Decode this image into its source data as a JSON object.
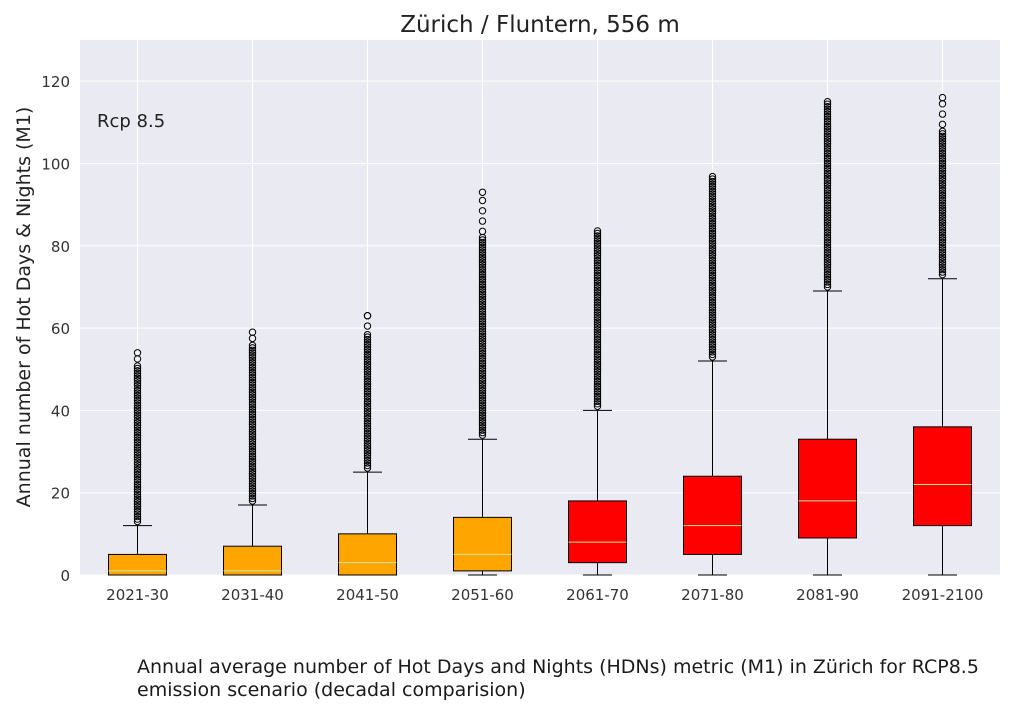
{
  "chart_data": {
    "type": "box",
    "title": "Zürich / Fluntern, 556 m",
    "annotation": "Rcp 8.5",
    "xlabel": "",
    "ylabel": "Annual number of Hot Days & Nights (M1)",
    "ylim": [
      0,
      130
    ],
    "yticks": [
      0,
      20,
      40,
      60,
      80,
      100,
      120
    ],
    "grid": true,
    "categories": [
      "2021-30",
      "2031-40",
      "2041-50",
      "2051-60",
      "2061-70",
      "2071-80",
      "2081-90",
      "2091-2100"
    ],
    "box_colors": [
      "#ffa500",
      "#ffa500",
      "#ffa500",
      "#ffa500",
      "#ff0000",
      "#ff0000",
      "#ff0000",
      "#ff0000"
    ],
    "median_color": "#c8e6a0",
    "background_color": "#eaeaf2",
    "boxes": [
      {
        "whisker_low": 0,
        "q1": 0,
        "median": 1,
        "q3": 5,
        "whisker_high": 12,
        "outliers_from": 13,
        "outliers_to": 51,
        "outliers_max": 54
      },
      {
        "whisker_low": 0,
        "q1": 0,
        "median": 1,
        "q3": 7,
        "whisker_high": 17,
        "outliers_from": 18,
        "outliers_to": 56,
        "outliers_max": 59
      },
      {
        "whisker_low": 0,
        "q1": 0,
        "median": 3,
        "q3": 10,
        "whisker_high": 25,
        "outliers_from": 26,
        "outliers_to": 59,
        "outliers_max": 63
      },
      {
        "whisker_low": 0,
        "q1": 1,
        "median": 5,
        "q3": 14,
        "whisker_high": 33,
        "outliers_from": 34,
        "outliers_to": 82,
        "outliers_max": 93
      },
      {
        "whisker_low": 0,
        "q1": 3,
        "median": 8,
        "q3": 18,
        "whisker_high": 40,
        "outliers_from": 41,
        "outliers_to": 84,
        "outliers_max": 84
      },
      {
        "whisker_low": 0,
        "q1": 5,
        "median": 12,
        "q3": 24,
        "whisker_high": 52,
        "outliers_from": 53,
        "outliers_to": 97,
        "outliers_max": 97
      },
      {
        "whisker_low": 0,
        "q1": 9,
        "median": 18,
        "q3": 33,
        "whisker_high": 69,
        "outliers_from": 70,
        "outliers_to": 115,
        "outliers_max": 115
      },
      {
        "whisker_low": 0,
        "q1": 12,
        "median": 22,
        "q3": 36,
        "whisker_high": 72,
        "outliers_from": 73,
        "outliers_to": 108,
        "outliers_max": 116
      }
    ]
  },
  "caption": {
    "line1": "Annual average number of Hot Days and Nights (HDNs) metric (M1) in Zürich for RCP8.5",
    "line2": "emission scenario (decadal comparision)"
  }
}
